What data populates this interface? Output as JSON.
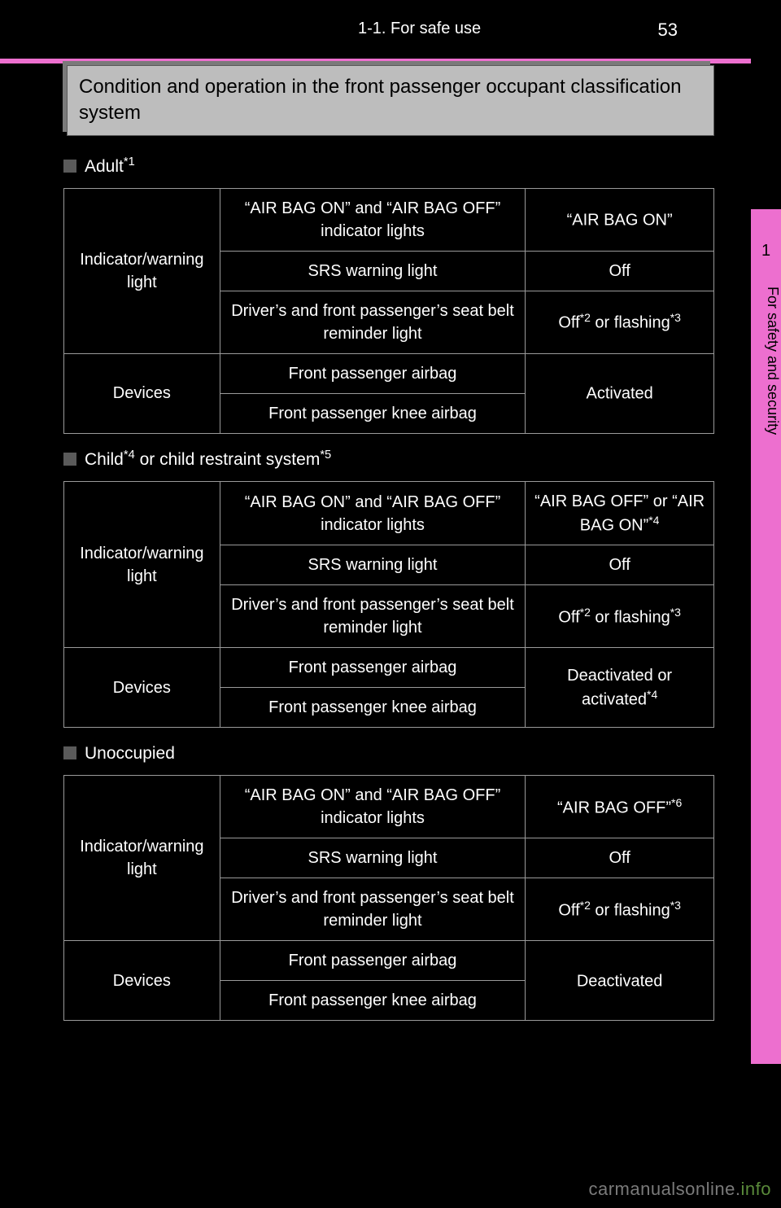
{
  "page_number": "53",
  "chapter": "1-1. For safe use",
  "tab": {
    "num": "1",
    "label": "For safety and security"
  },
  "heading": "Condition and operation in the front passenger occupant classification system",
  "watermark": {
    "a": "carmanualsonline.",
    "b": "info"
  },
  "labels": {
    "indicator": "Indicator/warning light",
    "devices": "Devices",
    "row_airbag": "“AIR BAG ON” and “AIR BAG OFF” indicator lights",
    "row_srs": "SRS warning light",
    "row_belt": "Driver’s and front passenger’s seat belt reminder light",
    "row_fp_airbag": "Front passenger airbag",
    "row_knee": "Front passenger knee airbag"
  },
  "sections": [
    {
      "title": "Adult",
      "sup": "*1",
      "values": {
        "airbag": "“AIR BAG ON”",
        "airbag_sup": "",
        "srs": "Off",
        "belt_pre": "Off",
        "belt_sup1": "*2",
        "belt_mid": " or flashing",
        "belt_sup2": "*3",
        "device": "Activated",
        "device_sup": ""
      }
    },
    {
      "title": "Child",
      "sup": "*4",
      "title_suffix": " or child restraint system",
      "sup2": "*5",
      "values": {
        "airbag": "“AIR BAG OFF” or “AIR BAG ON”",
        "airbag_sup": "*4",
        "srs": "Off",
        "belt_pre": "Off",
        "belt_sup1": "*2",
        "belt_mid": " or flashing",
        "belt_sup2": "*3",
        "device": "Deactivated or activated",
        "device_sup": "*4"
      }
    },
    {
      "title": "Unoccupied",
      "sup": "",
      "values": {
        "airbag": "“AIR BAG OFF”",
        "airbag_sup": "*6",
        "srs": "Off",
        "belt_pre": "Off",
        "belt_sup1": "*2",
        "belt_mid": " or flashing",
        "belt_sup2": "*3",
        "device": "Deactivated",
        "device_sup": ""
      }
    }
  ]
}
